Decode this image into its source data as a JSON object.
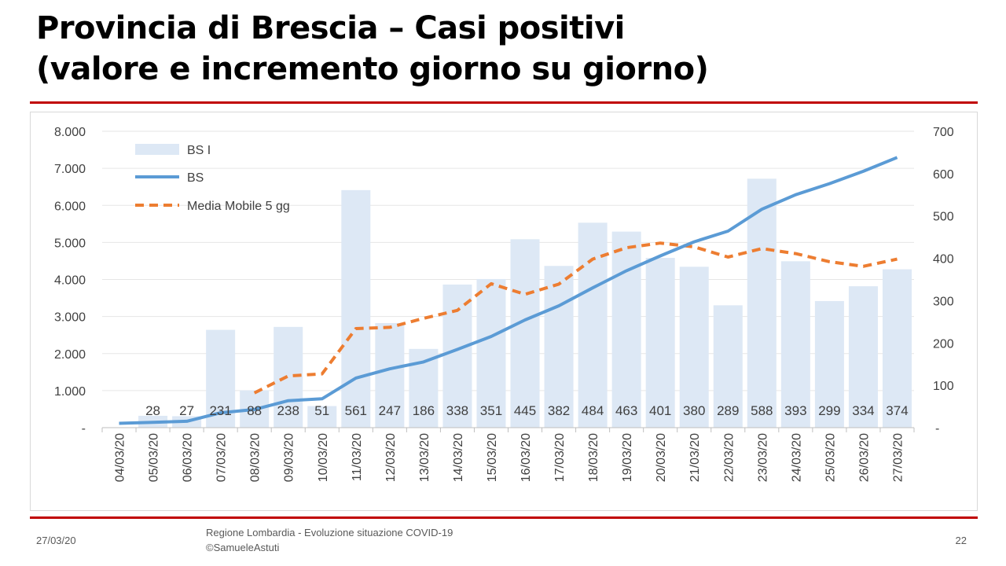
{
  "slide": {
    "title_line1": "Provincia di Brescia – Casi positivi",
    "title_line2": "(valore e incremento giorno su giorno)"
  },
  "footer": {
    "date": "27/03/20",
    "source_line1": "Regione Lombardia - Evoluzione situazione COVID-19",
    "source_line2": "©SamueleAstuti",
    "page_number": "22"
  },
  "colors": {
    "bar": "#dde8f5",
    "line": "#5b9bd5",
    "moving_avg": "#ed7d31",
    "accent_rule": "#c00000"
  },
  "chart_data": {
    "type": "bar",
    "categories": [
      "04/03/20",
      "05/03/20",
      "06/03/20",
      "07/03/20",
      "08/03/20",
      "09/03/20",
      "10/03/20",
      "11/03/20",
      "12/03/20",
      "13/03/20",
      "14/03/20",
      "15/03/20",
      "16/03/20",
      "17/03/20",
      "18/03/20",
      "19/03/20",
      "20/03/20",
      "21/03/20",
      "22/03/20",
      "23/03/20",
      "24/03/20",
      "25/03/20",
      "26/03/20",
      "27/03/20"
    ],
    "y_left": {
      "ticks": [
        0,
        1000,
        2000,
        3000,
        4000,
        5000,
        6000,
        7000,
        8000
      ],
      "tick_labels": [
        "-",
        "1.000",
        "2.000",
        "3.000",
        "4.000",
        "5.000",
        "6.000",
        "7.000",
        "8.000"
      ],
      "range": [
        0,
        8000
      ]
    },
    "y_right": {
      "ticks": [
        0,
        100,
        200,
        300,
        400,
        500,
        600,
        700
      ],
      "tick_labels": [
        "-",
        "100",
        "200",
        "300",
        "400",
        "500",
        "600",
        "700"
      ],
      "range": [
        0,
        700
      ]
    },
    "series": [
      {
        "name": "BS I",
        "kind": "bar",
        "axis": "right",
        "values": [
          null,
          28,
          27,
          231,
          88,
          238,
          51,
          561,
          247,
          186,
          338,
          351,
          445,
          382,
          484,
          463,
          401,
          380,
          289,
          588,
          393,
          299,
          334,
          374
        ],
        "labels": [
          "",
          "28",
          "27",
          "231",
          "88",
          "238",
          "51",
          "561",
          "247",
          "186",
          "338",
          "351",
          "445",
          "382",
          "484",
          "463",
          "401",
          "380",
          "289",
          "588",
          "393",
          "299",
          "334",
          "374"
        ]
      },
      {
        "name": "BS",
        "kind": "line",
        "axis": "left",
        "values": [
          116,
          144,
          171,
          402,
          490,
          728,
          779,
          1340,
          1587,
          1773,
          2111,
          2462,
          2907,
          3289,
          3773,
          4236,
          4637,
          5017,
          5306,
          5894,
          6287,
          6586,
          6920,
          7294
        ]
      },
      {
        "name": "Media Mobile 5 gg",
        "kind": "line-dashed",
        "axis": "right",
        "values": [
          null,
          null,
          null,
          null,
          82,
          122,
          127,
          234,
          237,
          258,
          277,
          340,
          315,
          339,
          398,
          425,
          436,
          427,
          403,
          423,
          411,
          392,
          381,
          398
        ]
      }
    ],
    "legend": {
      "placement": "top-left"
    },
    "grid": {
      "horizontal": true,
      "vertical": false
    }
  }
}
